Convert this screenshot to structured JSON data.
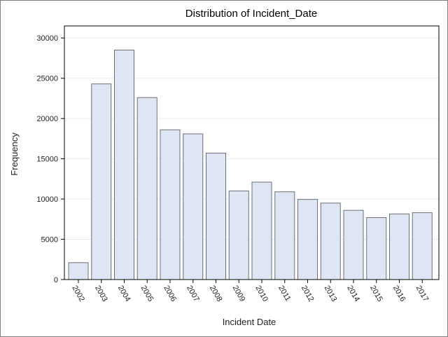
{
  "chart_data": {
    "type": "bar",
    "title": "Distribution of Incident_Date",
    "xlabel": "Incident Date",
    "ylabel": "Frequency",
    "categories": [
      "2002",
      "2003",
      "2004",
      "2005",
      "2006",
      "2007",
      "2008",
      "2009",
      "2010",
      "2011",
      "2012",
      "2013",
      "2014",
      "2015",
      "2016",
      "2017"
    ],
    "values": [
      2100,
      24300,
      28500,
      22600,
      18600,
      18100,
      15700,
      11000,
      12100,
      10900,
      9950,
      9500,
      8600,
      7700,
      8150,
      8300
    ],
    "ylim": [
      0,
      31500
    ],
    "yticks": [
      0,
      5000,
      10000,
      15000,
      20000,
      25000,
      30000
    ],
    "grid": true,
    "bar_fill": "#dde6f2",
    "bar_stroke": "#6e6e78",
    "grid_color": "#ebebeb",
    "axis_color": "#000000"
  }
}
